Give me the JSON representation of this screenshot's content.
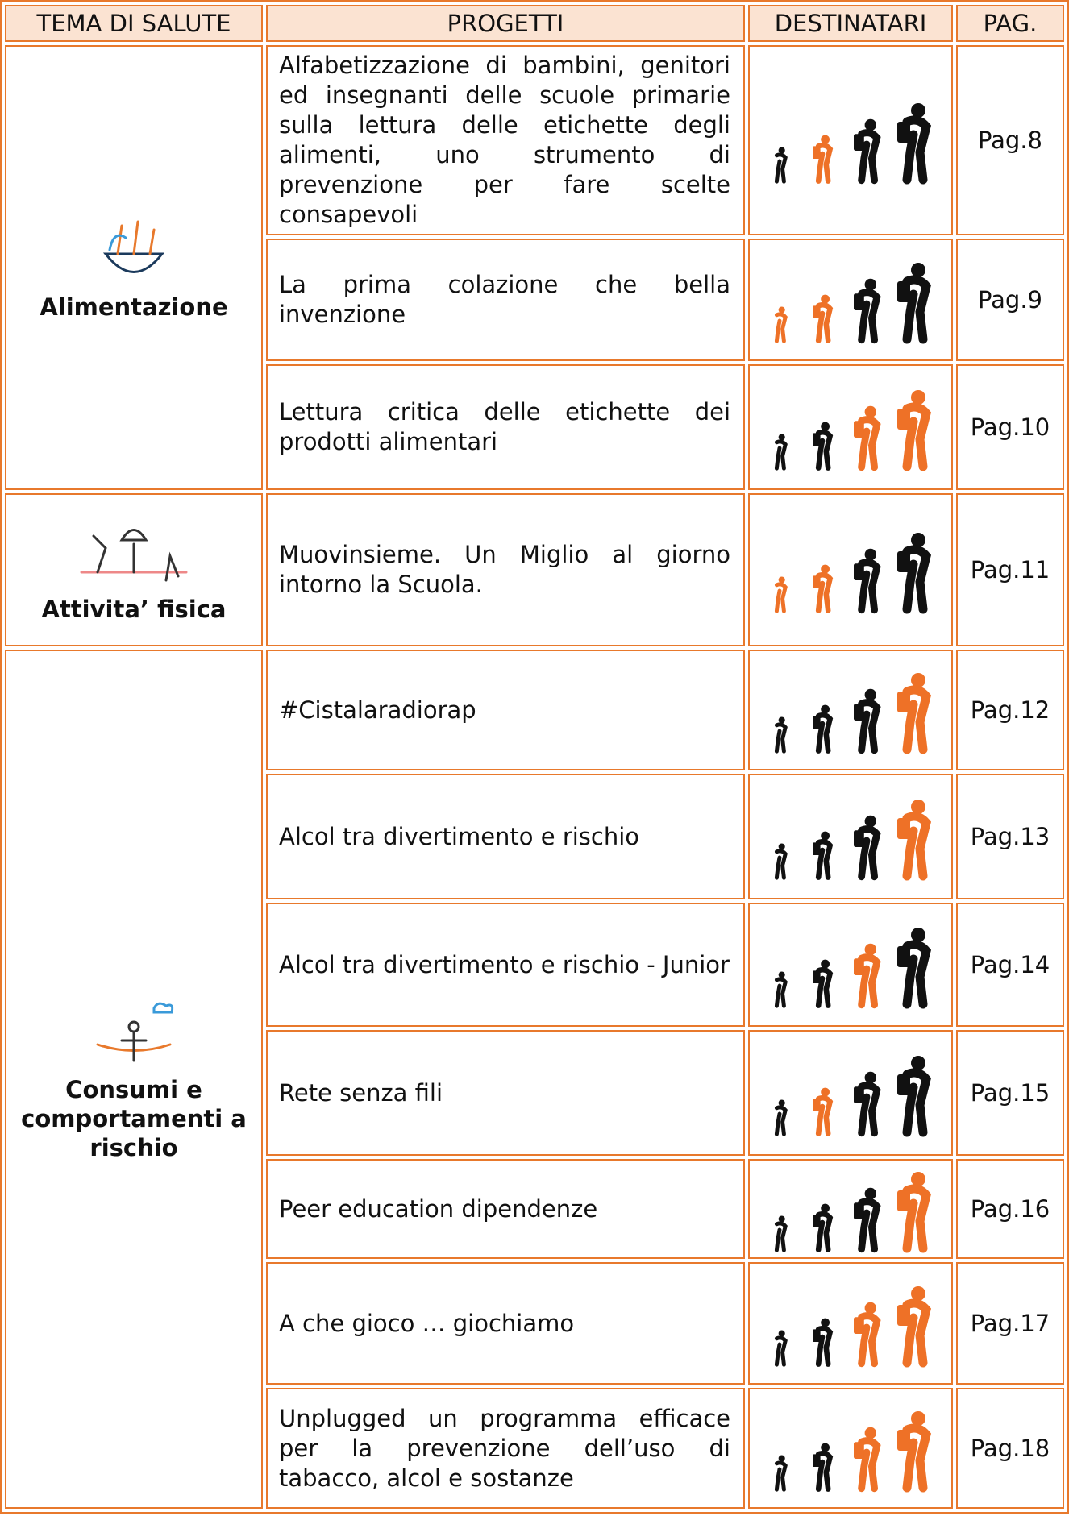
{
  "header": [
    "TEMA DI SALUTE",
    "PROGETTI",
    "DESTINATARI",
    "PAG."
  ],
  "themes": [
    {
      "name": "Alimentazione",
      "projects": [
        {
          "title": "Alfabetizzazione di bambini, genitori ed insegnanti delle scuole primarie sulla lettura delle etichette degli alimenti, uno strumento di prevenzione per fare scelte consapevoli",
          "destinatari": [
            "#111111",
            "#ee7127",
            "#111111",
            "#111111"
          ],
          "page": "Pag.8"
        },
        {
          "title": "La prima colazione che bella invenzione",
          "destinatari": [
            "#ee7127",
            "#ee7127",
            "#111111",
            "#111111"
          ],
          "page": "Pag.9"
        },
        {
          "title": "Lettura critica delle etichette dei prodotti alimentari",
          "destinatari": [
            "#111111",
            "#111111",
            "#ee7127",
            "#ee7127"
          ],
          "page": "Pag.10"
        }
      ]
    },
    {
      "name": "Attivita’ fisica",
      "projects": [
        {
          "title": "Muovinsieme. Un Miglio al giorno intorno la Scuola.",
          "destinatari": [
            "#ee7127",
            "#ee7127",
            "#111111",
            "#111111"
          ],
          "page": "Pag.11"
        }
      ]
    },
    {
      "name": "Consumi e comportamenti a rischio",
      "projects": [
        {
          "title": "#Cistalaradiorap",
          "destinatari": [
            "#111111",
            "#111111",
            "#111111",
            "#ee7127"
          ],
          "page": "Pag.12"
        },
        {
          "title": "Alcol tra divertimento e rischio",
          "destinatari": [
            "#111111",
            "#111111",
            "#111111",
            "#ee7127"
          ],
          "page": "Pag.13"
        },
        {
          "title": "Alcol tra divertimento e rischio - Junior",
          "destinatari": [
            "#111111",
            "#111111",
            "#ee7127",
            "#111111"
          ],
          "page": "Pag.14"
        },
        {
          "title": "Rete senza fili",
          "destinatari": [
            "#111111",
            "#ee7127",
            "#111111",
            "#111111"
          ],
          "page": "Pag.15"
        },
        {
          "title": "Peer education dipendenze",
          "destinatari": [
            "#111111",
            "#111111",
            "#111111",
            "#ee7127"
          ],
          "page": "Pag.16"
        },
        {
          "title": "A che gioco … giochiamo",
          "destinatari": [
            "#111111",
            "#111111",
            "#ee7127",
            "#ee7127"
          ],
          "page": "Pag.17"
        },
        {
          "title": "Unplugged un programma efficace per la prevenzione dell’uso di tabacco, alcol e sostanze",
          "destinatari": [
            "#111111",
            "#111111",
            "#ee7127",
            "#ee7127"
          ],
          "page": "Pag.18"
        }
      ]
    }
  ]
}
